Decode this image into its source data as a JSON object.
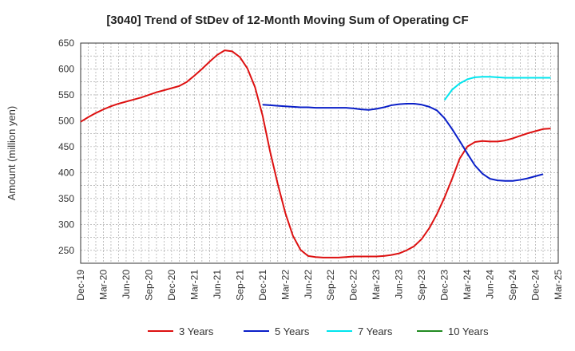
{
  "chart_data": {
    "type": "line",
    "title": "[3040]  Trend of StDev of 12-Month Moving Sum of Operating CF",
    "xlabel": "",
    "ylabel": "Amount (million yen)",
    "ylim": [
      225,
      650
    ],
    "yticks": [
      250,
      300,
      350,
      400,
      450,
      500,
      550,
      600,
      650
    ],
    "x_categories": [
      "Dec-19",
      "Mar-20",
      "Jun-20",
      "Sep-20",
      "Dec-20",
      "Mar-21",
      "Jun-21",
      "Sep-21",
      "Dec-21",
      "Mar-22",
      "Jun-22",
      "Sep-22",
      "Dec-22",
      "Mar-23",
      "Jun-23",
      "Sep-23",
      "Dec-23",
      "Mar-24",
      "Jun-24",
      "Sep-24",
      "Dec-24",
      "Mar-25"
    ],
    "grid": true,
    "legend_position": "bottom",
    "series": [
      {
        "name": "3 Years",
        "color": "#dd1111",
        "start_index": 0,
        "values": [
          498,
          507,
          515,
          522,
          528,
          533,
          537,
          541,
          545,
          550,
          555,
          559,
          563,
          567,
          575,
          587,
          600,
          614,
          627,
          636,
          634,
          623,
          601,
          565,
          510,
          440,
          378,
          322,
          278,
          251,
          239,
          237,
          236,
          236,
          236,
          237,
          238,
          238,
          238,
          238,
          239,
          241,
          244,
          250,
          258,
          272,
          293,
          320,
          352,
          388,
          427,
          450,
          459,
          461,
          460,
          460,
          462,
          466,
          471,
          476,
          480,
          484,
          485
        ]
      },
      {
        "name": "5 Years",
        "color": "#0a1fc8",
        "start_index": 24,
        "values": [
          531,
          530,
          529,
          528,
          527,
          526,
          526,
          525,
          525,
          525,
          525,
          525,
          524,
          522,
          521,
          523,
          526,
          530,
          532,
          533,
          533,
          531,
          527,
          520,
          505,
          484,
          461,
          437,
          414,
          398,
          388,
          385,
          384,
          384,
          386,
          389,
          393,
          397
        ]
      },
      {
        "name": "7 Years",
        "color": "#00e5ee",
        "start_index": 48,
        "values": [
          540,
          560,
          572,
          580,
          584,
          585,
          585,
          584,
          583,
          583,
          583,
          583,
          583,
          583,
          583
        ]
      },
      {
        "name": "10 Years",
        "color": "#228b22",
        "start_index": 0,
        "values": []
      }
    ]
  }
}
